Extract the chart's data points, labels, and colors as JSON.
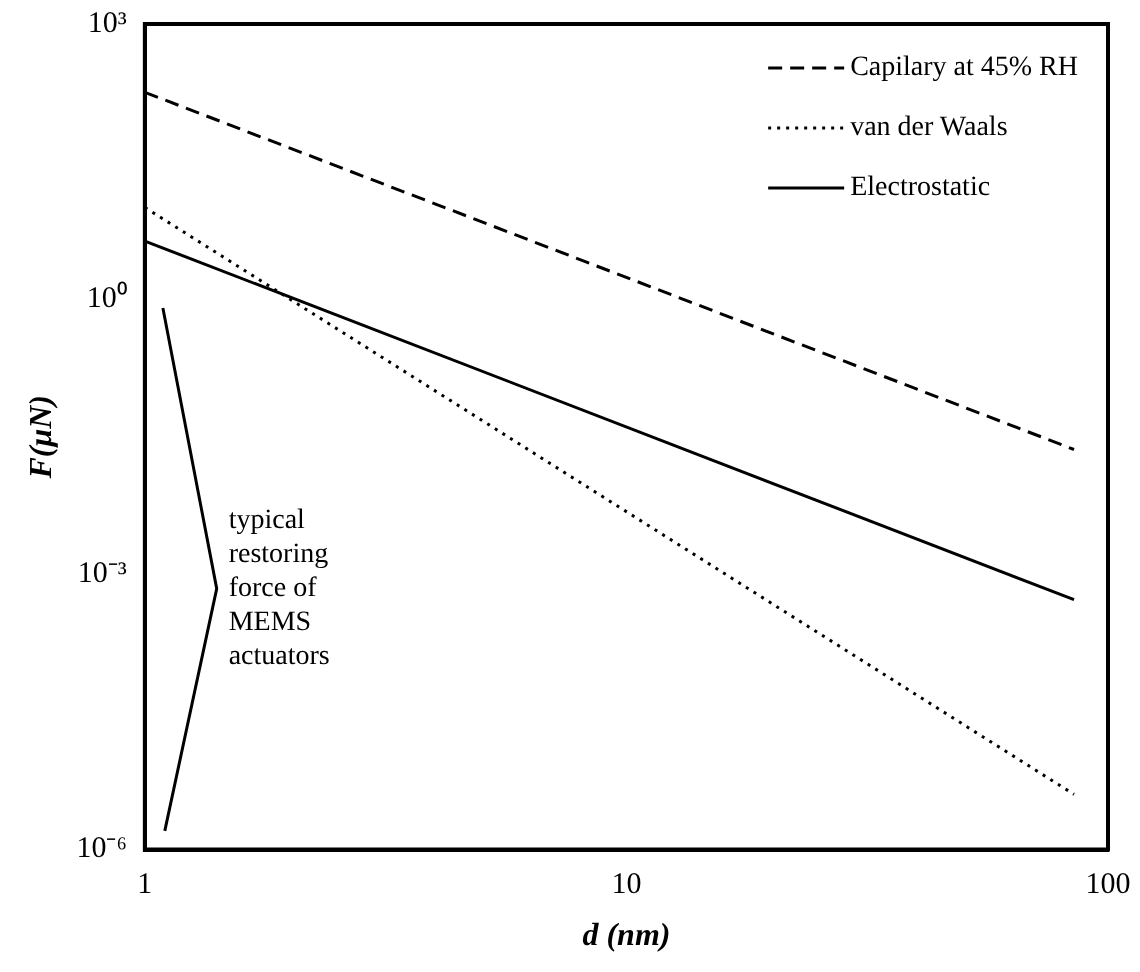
{
  "chart_data": {
    "type": "line",
    "xlabel": "d (nm)",
    "ylabel": "F(μN)",
    "log": "xy",
    "xlim": [
      1,
      100
    ],
    "ylim": [
      1e-06,
      1000
    ],
    "xticks": [
      1,
      10,
      100
    ],
    "yticks": [
      {
        "value": 1e-06,
        "label": "10⁻⁶"
      },
      {
        "value": 0.001,
        "label": "10⁻³"
      },
      {
        "value": 1,
        "label": "10⁰"
      },
      {
        "value": 1000,
        "label": "10³"
      }
    ],
    "x": [
      1,
      85
    ],
    "grid": false,
    "legend": "top right",
    "marker": "none",
    "series": [
      {
        "name": "Capilary at 45% RH",
        "color": "#000000",
        "line_style": "dashed",
        "values": [
          180,
          0.023
        ]
      },
      {
        "name": "van der Waals",
        "color": "#000000",
        "line_style": "dotted",
        "values": [
          10,
          4e-06
        ]
      },
      {
        "name": "Electrostatic",
        "color": "#000000",
        "line_style": "solid",
        "values": [
          4.3,
          0.00053
        ]
      },
      {
        "color": "#000000",
        "line_style": "solid",
        "x": [
          1.09,
          1.41,
          1.1
        ],
        "values": [
          0.8,
          0.0007,
          1.6e-06
        ]
      }
    ],
    "annotations": [
      {
        "text": "typical restoring force of MEMS actuators",
        "x": 1.41,
        "y": 0.0007
      }
    ]
  }
}
